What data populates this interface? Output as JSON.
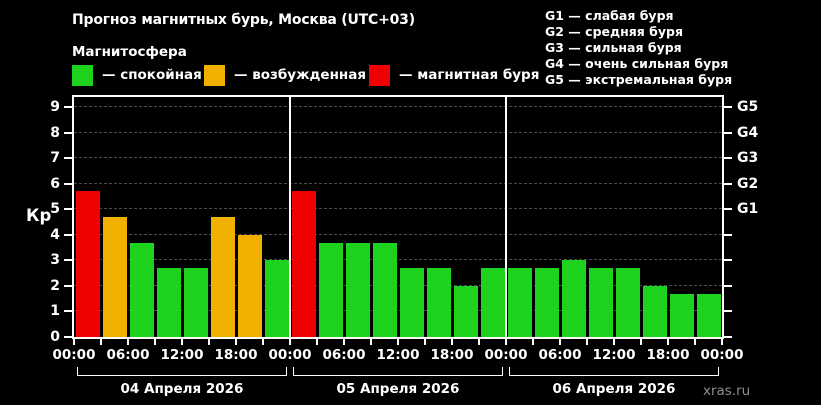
{
  "header": {
    "title": "Прогноз магнитных бурь, Москва (UTC+03)"
  },
  "magnetosphere": {
    "title": "Магнитосфера",
    "items": [
      {
        "name": "quiet",
        "label": "— спокойная",
        "color": "#1dd31d"
      },
      {
        "name": "excited",
        "label": "— возбужденная",
        "color": "#f0b000"
      },
      {
        "name": "storm",
        "label": "— магнитная буря",
        "color": "#f00000"
      }
    ]
  },
  "storm_scale": {
    "items": [
      "G1 — слабая буря",
      "G2 — средняя буря",
      "G3 — сильная буря",
      "G4 — очень сильная буря",
      "G5 — экстремальная буря"
    ]
  },
  "watermark": "xras.ru",
  "chart_data": {
    "type": "bar",
    "title": "Прогноз магнитных бурь, Москва (UTC+03)",
    "ylabel": "Кр",
    "ylim": [
      0,
      9.4
    ],
    "yticks": [
      0,
      1,
      2,
      3,
      4,
      5,
      6,
      7,
      8,
      9
    ],
    "right_axis_labels": {
      "5": "G1",
      "6": "G2",
      "7": "G3",
      "8": "G4",
      "9": "G5"
    },
    "grid": "horizontal dashed at 1..9",
    "legend_position": "top",
    "bar_interval_hours": 3,
    "x_tick_labels": [
      "00:00",
      "06:00",
      "12:00",
      "18:00",
      "00:00",
      "06:00",
      "12:00",
      "18:00",
      "00:00",
      "06:00",
      "12:00",
      "18:00",
      "00:00"
    ],
    "colors": {
      "quiet": "#1dd31d",
      "excited": "#f0b000",
      "storm": "#f00000"
    },
    "days": [
      {
        "date": "04 Апреля 2026",
        "values": [
          5.7,
          4.7,
          3.7,
          2.7,
          2.7,
          4.7,
          4.0,
          3.0
        ],
        "states": [
          "storm",
          "excited",
          "quiet",
          "quiet",
          "quiet",
          "excited",
          "excited",
          "quiet"
        ]
      },
      {
        "date": "05 Апреля 2026",
        "values": [
          5.7,
          3.7,
          3.7,
          3.7,
          2.7,
          2.7,
          2.0,
          2.7
        ],
        "states": [
          "storm",
          "quiet",
          "quiet",
          "quiet",
          "quiet",
          "quiet",
          "quiet",
          "quiet"
        ]
      },
      {
        "date": "06 Апреля 2026",
        "values": [
          2.7,
          2.7,
          3.0,
          2.7,
          2.7,
          2.0,
          1.7,
          1.7
        ],
        "states": [
          "quiet",
          "quiet",
          "quiet",
          "quiet",
          "quiet",
          "quiet",
          "quiet",
          "quiet"
        ]
      }
    ]
  }
}
